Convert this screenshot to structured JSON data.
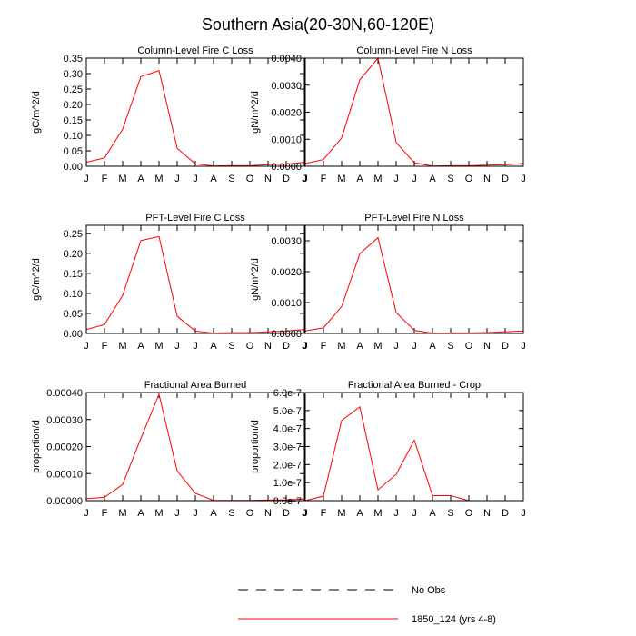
{
  "figure": {
    "title": "Southern Asia(20-30N,60-120E)"
  },
  "legend": {
    "entries": [
      {
        "label": "No Obs",
        "style": "dashed",
        "color": "#000000"
      },
      {
        "label": "1850_124 (yrs 4-8)",
        "style": "solid",
        "color": "#ff0000"
      }
    ]
  },
  "chart_data": [
    {
      "type": "line",
      "title": "Column-Level Fire C Loss",
      "ylabel": "gC/m^2/d",
      "categories": [
        "J",
        "F",
        "M",
        "A",
        "M",
        "J",
        "J",
        "A",
        "S",
        "O",
        "N",
        "D",
        "J"
      ],
      "ylim": [
        0,
        0.35
      ],
      "yticks": [
        0,
        0.05,
        0.1,
        0.15,
        0.2,
        0.25,
        0.3,
        0.35
      ],
      "ytick_labels": [
        "0.00",
        "0.05",
        "0.10",
        "0.15",
        "0.20",
        "0.25",
        "0.30",
        "0.35"
      ],
      "series": [
        {
          "name": "1850_124 (yrs 4-8)",
          "color": "#ff0000",
          "values": [
            0.013,
            0.027,
            0.12,
            0.29,
            0.31,
            0.058,
            0.008,
            0.001,
            0.002,
            0.002,
            0.005,
            0.007,
            0.013
          ]
        }
      ]
    },
    {
      "type": "line",
      "title": "Column-Level Fire N Loss",
      "ylabel": "gN/m^2/d",
      "categories": [
        "J",
        "F",
        "M",
        "A",
        "M",
        "J",
        "J",
        "A",
        "S",
        "O",
        "N",
        "D",
        "J"
      ],
      "ylim": [
        0,
        0.004
      ],
      "yticks": [
        0,
        0.001,
        0.002,
        0.003,
        0.004
      ],
      "ytick_labels": [
        "0.0000",
        "0.0010",
        "0.0020",
        "0.0030",
        "0.0040"
      ],
      "series": [
        {
          "name": "1850_124 (yrs 4-8)",
          "color": "#ff0000",
          "values": [
            0.0001,
            0.00025,
            0.00105,
            0.0032,
            0.004,
            0.00088,
            0.00013,
            1e-05,
            2e-05,
            2e-05,
            4e-05,
            6e-05,
            0.0001
          ]
        }
      ]
    },
    {
      "type": "line",
      "title": "PFT-Level Fire C Loss",
      "ylabel": "gC/m^2/d",
      "categories": [
        "J",
        "F",
        "M",
        "A",
        "M",
        "J",
        "J",
        "A",
        "S",
        "O",
        "N",
        "D",
        "J"
      ],
      "ylim": [
        0,
        0.27
      ],
      "yticks": [
        0,
        0.05,
        0.1,
        0.15,
        0.2,
        0.25
      ],
      "ytick_labels": [
        "0.00",
        "0.05",
        "0.10",
        "0.15",
        "0.20",
        "0.25"
      ],
      "series": [
        {
          "name": "1850_124 (yrs 4-8)",
          "color": "#ff0000",
          "values": [
            0.01,
            0.022,
            0.095,
            0.232,
            0.242,
            0.043,
            0.006,
            0.001,
            0.002,
            0.002,
            0.004,
            0.006,
            0.01
          ]
        }
      ]
    },
    {
      "type": "line",
      "title": "PFT-Level Fire N Loss",
      "ylabel": "gN/m^2/d",
      "categories": [
        "J",
        "F",
        "M",
        "A",
        "M",
        "J",
        "J",
        "A",
        "S",
        "O",
        "N",
        "D",
        "J"
      ],
      "ylim": [
        0,
        0.0035
      ],
      "yticks": [
        0,
        0.001,
        0.002,
        0.003
      ],
      "ytick_labels": [
        "0.0000",
        "0.0010",
        "0.0020",
        "0.0030"
      ],
      "series": [
        {
          "name": "1850_124 (yrs 4-8)",
          "color": "#ff0000",
          "values": [
            8e-05,
            0.00018,
            0.00087,
            0.00258,
            0.0031,
            0.00068,
            0.0001,
            1e-05,
            2e-05,
            2e-05,
            3e-05,
            5e-05,
            8e-05
          ]
        }
      ]
    },
    {
      "type": "line",
      "title": "Fractional Area Burned",
      "ylabel": "proportion/d",
      "categories": [
        "J",
        "F",
        "M",
        "A",
        "M",
        "J",
        "J",
        "A",
        "S",
        "O",
        "N",
        "D",
        "J"
      ],
      "ylim": [
        0,
        0.0004
      ],
      "yticks": [
        0,
        0.0001,
        0.0002,
        0.0003,
        0.0004
      ],
      "ytick_labels": [
        "0.00000",
        "0.00010",
        "0.00020",
        "0.00030",
        "0.00040"
      ],
      "series": [
        {
          "name": "1850_124 (yrs 4-8)",
          "color": "#ff0000",
          "values": [
            7e-06,
            1.2e-05,
            6e-05,
            0.00023,
            0.000393,
            0.00011,
            2.7e-05,
            1e-06,
            1e-06,
            1e-06,
            2e-06,
            3e-06,
            6e-06
          ]
        }
      ]
    },
    {
      "type": "line",
      "title": "Fractional Area Burned - Crop",
      "ylabel": "proportion/d",
      "categories": [
        "J",
        "F",
        "M",
        "A",
        "M",
        "J",
        "J",
        "A",
        "S",
        "O",
        "N",
        "D",
        "J"
      ],
      "ylim": [
        0,
        6e-07
      ],
      "yticks": [
        0,
        1e-07,
        2e-07,
        3e-07,
        4e-07,
        5e-07,
        6e-07
      ],
      "ytick_labels": [
        "0.0e-7",
        "1.0e-7",
        "2.0e-7",
        "3.0e-7",
        "4.0e-7",
        "5.0e-7",
        "6.0e-7"
      ],
      "series": [
        {
          "name": "1850_124 (yrs 4-8)",
          "color": "#ff0000",
          "values": [
            0.0,
            2.5e-08,
            4.45e-07,
            5.2e-07,
            6e-08,
            1.45e-07,
            3.35e-07,
            2.8e-08,
            2.8e-08,
            0.0,
            0.0,
            0.0,
            0.0
          ]
        }
      ]
    }
  ]
}
